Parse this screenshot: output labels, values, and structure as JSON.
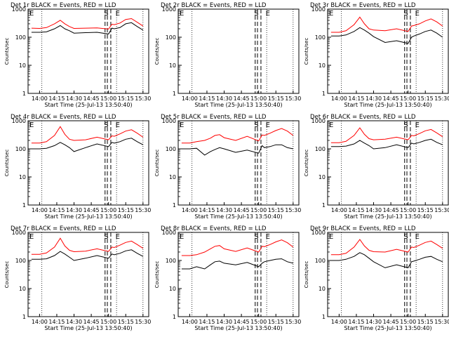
{
  "colors": {
    "background": "#ffffff",
    "axes": "#000000",
    "events": "#000000",
    "lld": "#ff0000"
  },
  "shared": {
    "ylabel": "Counts/sec",
    "xlabel": "Start Time (25-Jul-13 13:50:40)",
    "xtick_labels": [
      "14:00",
      "14:15",
      "14:30",
      "14:45",
      "15:00",
      "15:15",
      "15:30"
    ],
    "ytick_labels": [
      "1",
      "10",
      "100",
      "1000"
    ],
    "marker_S": "S",
    "marker_E": "E"
  },
  "chart_data": [
    {
      "type": "line",
      "title": "Det 1r BLACK = Events, RED = LLD",
      "ylim": [
        1,
        1000
      ],
      "yscale": "log",
      "x": [
        "13:53",
        "14:00",
        "14:06",
        "14:13",
        "14:18",
        "14:22",
        "14:26",
        "14:30",
        "14:40",
        "14:50",
        "15:00",
        "15:03",
        "15:05",
        "15:10",
        "15:15",
        "15:20",
        "15:25",
        "15:30"
      ],
      "series": [
        {
          "name": "Events",
          "color": "black",
          "values": [
            150,
            150,
            155,
            200,
            260,
            200,
            170,
            140,
            145,
            150,
            130,
            210,
            200,
            220,
            300,
            330,
            240,
            180
          ]
        },
        {
          "name": "LLD",
          "color": "red",
          "values": [
            210,
            205,
            220,
            300,
            400,
            300,
            240,
            205,
            210,
            215,
            195,
            290,
            280,
            320,
            430,
            460,
            340,
            250
          ]
        }
      ]
    },
    {
      "type": "line",
      "title": "Det 2r BLACK = Events, RED = LLD",
      "ylim": [
        1,
        1000
      ],
      "yscale": "log",
      "x": [],
      "series": []
    },
    {
      "type": "line",
      "title": "Det 3r BLACK = Events, RED = LLD",
      "ylim": [
        1,
        1000
      ],
      "yscale": "log",
      "x": [
        "13:53",
        "14:00",
        "14:06",
        "14:13",
        "14:18",
        "14:22",
        "14:26",
        "14:30",
        "14:40",
        "14:50",
        "15:00",
        "15:03",
        "15:05",
        "15:10",
        "15:15",
        "15:20",
        "15:25",
        "15:30"
      ],
      "series": [
        {
          "name": "Events",
          "color": "black",
          "values": [
            110,
            110,
            120,
            160,
            220,
            180,
            140,
            105,
            65,
            75,
            60,
            100,
            110,
            130,
            160,
            180,
            140,
            100
          ]
        },
        {
          "name": "LLD",
          "color": "red",
          "values": [
            150,
            150,
            170,
            280,
            520,
            300,
            200,
            180,
            170,
            200,
            160,
            250,
            260,
            300,
            380,
            450,
            350,
            250
          ]
        }
      ]
    },
    {
      "type": "line",
      "title": "Det 4r BLACK = Events, RED = LLD",
      "ylim": [
        1,
        1000
      ],
      "yscale": "log",
      "x": [
        "13:53",
        "14:00",
        "14:06",
        "14:13",
        "14:18",
        "14:22",
        "14:26",
        "14:30",
        "14:40",
        "14:50",
        "15:00",
        "15:03",
        "15:05",
        "15:10",
        "15:15",
        "15:20",
        "15:25",
        "15:30"
      ],
      "series": [
        {
          "name": "Events",
          "color": "black",
          "values": [
            100,
            100,
            105,
            130,
            170,
            140,
            110,
            80,
            110,
            150,
            120,
            170,
            160,
            180,
            220,
            240,
            180,
            140
          ]
        },
        {
          "name": "LLD",
          "color": "red",
          "values": [
            160,
            160,
            180,
            300,
            620,
            330,
            220,
            200,
            210,
            260,
            210,
            290,
            280,
            340,
            430,
            480,
            360,
            260
          ]
        }
      ]
    },
    {
      "type": "line",
      "title": "Det 5r BLACK = Events, RED = LLD",
      "ylim": [
        1,
        1000
      ],
      "yscale": "log",
      "x": [
        "13:53",
        "14:00",
        "14:06",
        "14:13",
        "14:18",
        "14:22",
        "14:26",
        "14:30",
        "14:40",
        "14:50",
        "15:00",
        "15:03",
        "15:05",
        "15:10",
        "15:15",
        "15:20",
        "15:25",
        "15:30"
      ],
      "series": [
        {
          "name": "Events",
          "color": "black",
          "values": [
            100,
            100,
            105,
            60,
            80,
            95,
            110,
            100,
            75,
            90,
            70,
            130,
            110,
            120,
            140,
            140,
            110,
            100
          ]
        },
        {
          "name": "LLD",
          "color": "red",
          "values": [
            160,
            160,
            180,
            200,
            240,
            300,
            320,
            250,
            200,
            280,
            190,
            310,
            300,
            360,
            450,
            530,
            430,
            300
          ]
        }
      ]
    },
    {
      "type": "line",
      "title": "Det 6r BLACK = Events, RED = LLD",
      "ylim": [
        1,
        1000
      ],
      "yscale": "log",
      "x": [
        "13:53",
        "14:00",
        "14:06",
        "14:13",
        "14:18",
        "14:22",
        "14:26",
        "14:30",
        "14:40",
        "14:50",
        "15:00",
        "15:03",
        "15:05",
        "15:10",
        "15:15",
        "15:20",
        "15:25",
        "15:30"
      ],
      "series": [
        {
          "name": "Events",
          "color": "black",
          "values": [
            120,
            120,
            125,
            150,
            200,
            160,
            130,
            100,
            110,
            140,
            110,
            160,
            150,
            170,
            200,
            220,
            170,
            140
          ]
        },
        {
          "name": "LLD",
          "color": "red",
          "values": [
            165,
            165,
            185,
            300,
            560,
            330,
            230,
            210,
            220,
            260,
            210,
            300,
            290,
            350,
            440,
            490,
            370,
            270
          ]
        }
      ]
    },
    {
      "type": "line",
      "title": "Det 7r BLACK = Events, RED = LLD",
      "ylim": [
        1,
        1000
      ],
      "yscale": "log",
      "x": [
        "13:53",
        "14:00",
        "14:06",
        "14:13",
        "14:18",
        "14:22",
        "14:26",
        "14:30",
        "14:40",
        "14:50",
        "15:00",
        "15:03",
        "15:05",
        "15:10",
        "15:15",
        "15:20",
        "15:25",
        "15:30"
      ],
      "series": [
        {
          "name": "Events",
          "color": "black",
          "values": [
            110,
            110,
            115,
            150,
            210,
            170,
            130,
            100,
            120,
            150,
            120,
            170,
            160,
            180,
            220,
            240,
            180,
            140
          ]
        },
        {
          "name": "LLD",
          "color": "red",
          "values": [
            165,
            165,
            185,
            300,
            620,
            330,
            230,
            205,
            215,
            260,
            210,
            300,
            290,
            350,
            440,
            490,
            370,
            270
          ]
        }
      ]
    },
    {
      "type": "line",
      "title": "Det 8r BLACK = Events, RED = LLD",
      "ylim": [
        1,
        1000
      ],
      "yscale": "log",
      "x": [
        "13:53",
        "14:00",
        "14:06",
        "14:13",
        "14:18",
        "14:22",
        "14:26",
        "14:30",
        "14:40",
        "14:50",
        "15:00",
        "15:03",
        "15:05",
        "15:10",
        "15:15",
        "15:20",
        "15:25",
        "15:30"
      ],
      "series": [
        {
          "name": "Events",
          "color": "black",
          "values": [
            50,
            50,
            60,
            50,
            70,
            90,
            95,
            80,
            70,
            85,
            60,
            80,
            90,
            100,
            110,
            115,
            90,
            80
          ]
        },
        {
          "name": "LLD",
          "color": "red",
          "values": [
            150,
            150,
            160,
            200,
            260,
            320,
            340,
            260,
            210,
            280,
            200,
            320,
            310,
            370,
            460,
            540,
            430,
            300
          ]
        }
      ]
    },
    {
      "type": "line",
      "title": "Det 9r BLACK = Events, RED = LLD",
      "ylim": [
        1,
        1000
      ],
      "yscale": "log",
      "x": [
        "13:53",
        "14:00",
        "14:06",
        "14:13",
        "14:18",
        "14:22",
        "14:26",
        "14:30",
        "14:40",
        "14:50",
        "15:00",
        "15:03",
        "15:05",
        "15:10",
        "15:15",
        "15:20",
        "15:25",
        "15:30"
      ],
      "series": [
        {
          "name": "Events",
          "color": "black",
          "values": [
            100,
            100,
            110,
            140,
            190,
            160,
            120,
            90,
            55,
            70,
            55,
            90,
            95,
            110,
            130,
            140,
            110,
            90
          ]
        },
        {
          "name": "LLD",
          "color": "red",
          "values": [
            160,
            160,
            180,
            300,
            560,
            330,
            230,
            205,
            200,
            250,
            200,
            300,
            290,
            350,
            440,
            490,
            370,
            270
          ]
        }
      ]
    }
  ]
}
